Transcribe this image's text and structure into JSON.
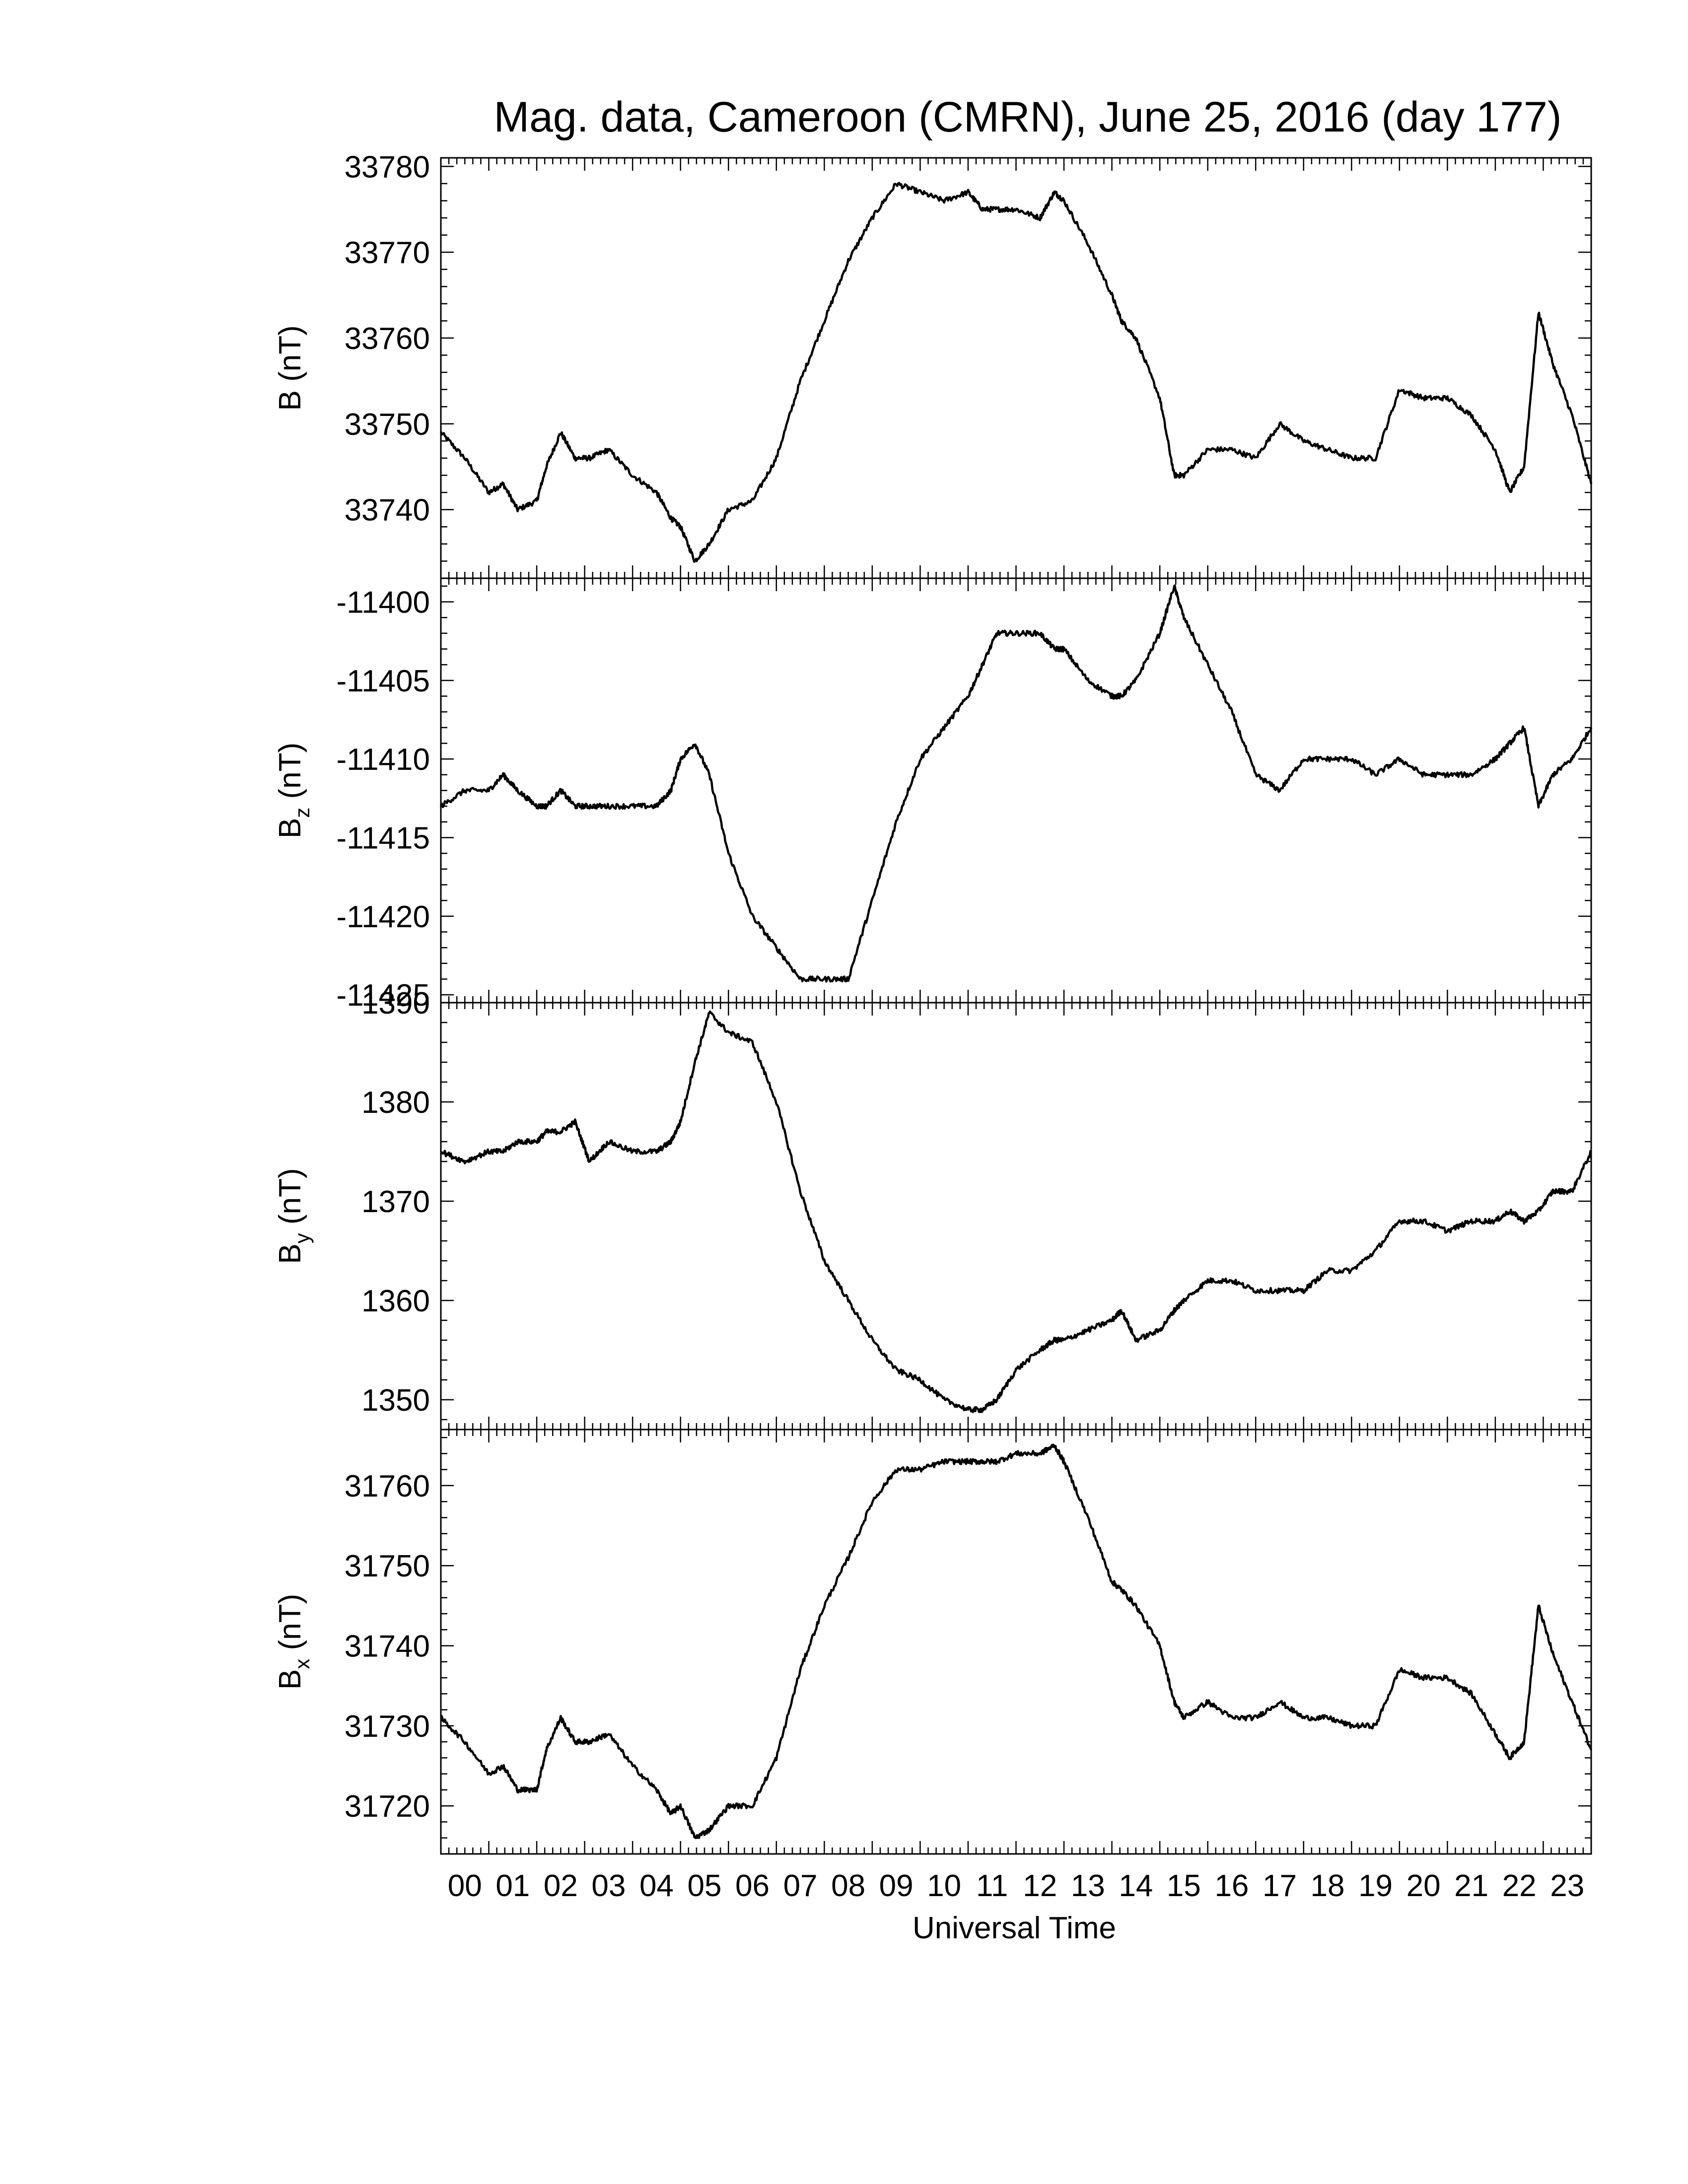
{
  "chart_data": {
    "type": "line",
    "title": "Mag. data, Cameroon (CMRN), June 25, 2016 (day 177)",
    "xlabel": "Universal Time",
    "x_tick_labels": [
      "00",
      "01",
      "02",
      "03",
      "04",
      "05",
      "06",
      "07",
      "08",
      "09",
      "10",
      "11",
      "12",
      "13",
      "14",
      "15",
      "16",
      "17",
      "18",
      "19",
      "20",
      "21",
      "22",
      "23"
    ],
    "xlim": [
      0,
      24
    ],
    "x": [
      0,
      0.5,
      1,
      1.3,
      1.6,
      2,
      2.2,
      2.5,
      2.8,
      3.1,
      3.5,
      4,
      4.5,
      4.8,
      5,
      5.3,
      5.6,
      6,
      6.5,
      7,
      7.5,
      8,
      8.5,
      9,
      9.5,
      10,
      10.5,
      11,
      11.3,
      11.6,
      12,
      12.5,
      12.8,
      13,
      13.5,
      14,
      14.2,
      14.5,
      15,
      15.3,
      15.5,
      16,
      16.5,
      17,
      17.5,
      18,
      18.5,
      19,
      19.5,
      20,
      20.5,
      21,
      21.5,
      22,
      22.3,
      22.6,
      22.9,
      23.2,
      23.6,
      24
    ],
    "panels": [
      {
        "ylabel": "B (nT)",
        "ylim": [
          33732,
          33781
        ],
        "yticks": [
          33740,
          33750,
          33760,
          33770,
          33780
        ],
        "values": [
          33749,
          33746,
          33742,
          33743,
          33740,
          33741,
          33745,
          33749,
          33746,
          33746,
          33747,
          33744,
          33742,
          33739,
          33738,
          33734,
          33736,
          33740,
          33741,
          33746,
          33755,
          33762,
          33769,
          33774,
          33778,
          33777,
          33776,
          33777,
          33775,
          33775,
          33775,
          33774,
          33777,
          33776,
          33771,
          33765,
          33762,
          33760,
          33753,
          33744,
          33744,
          33747,
          33747,
          33746,
          33750,
          33748,
          33747,
          33746,
          33746,
          33754,
          33753,
          33753,
          33751,
          33747,
          33742,
          33745,
          33763,
          33757,
          33751,
          33743
        ]
      },
      {
        "ylabel": "B_z (nT)",
        "ylim": [
          -11425.5,
          -11398.5
        ],
        "yticks": [
          -11400,
          -11405,
          -11410,
          -11415,
          -11420,
          -11425
        ],
        "values": [
          -11413,
          -11412,
          -11412,
          -11411,
          -11412,
          -11413,
          -11413,
          -11412,
          -11413,
          -11413,
          -11413,
          -11413,
          -11413,
          -11412,
          -11410,
          -11409,
          -11411,
          -11416,
          -11420,
          -11422,
          -11424,
          -11424,
          -11424,
          -11419,
          -11414,
          -11410,
          -11408,
          -11406,
          -11404,
          -11402,
          -11402,
          -11402,
          -11403,
          -11403,
          -11405,
          -11406,
          -11406,
          -11405,
          -11402,
          -11399,
          -11401,
          -11404,
          -11407,
          -11411,
          -11412,
          -11410,
          -11410,
          -11410,
          -11411,
          -11410,
          -11411,
          -11411,
          -11411,
          -11410,
          -11409,
          -11408,
          -11413,
          -11411,
          -11410,
          -11408
        ]
      },
      {
        "ylabel": "B_y (nT)",
        "ylim": [
          1347,
          1390
        ],
        "yticks": [
          1350,
          1360,
          1370,
          1380,
          1390
        ],
        "values": [
          1375,
          1374,
          1375,
          1375,
          1376,
          1376,
          1377,
          1377,
          1378,
          1374,
          1376,
          1375,
          1375,
          1376,
          1378,
          1384,
          1389,
          1387,
          1386,
          1380,
          1371,
          1364,
          1360,
          1356,
          1353,
          1352,
          1350,
          1349,
          1349,
          1350,
          1353,
          1355,
          1356,
          1356,
          1357,
          1358,
          1359,
          1356,
          1357,
          1359,
          1360,
          1362,
          1362,
          1361,
          1361,
          1361,
          1363,
          1363,
          1365,
          1368,
          1368,
          1367,
          1368,
          1368,
          1369,
          1368,
          1369,
          1371,
          1371,
          1375
        ]
      },
      {
        "ylabel": "B_x (nT)",
        "ylim": [
          31714,
          31767
        ],
        "yticks": [
          31720,
          31730,
          31740,
          31750,
          31760
        ],
        "values": [
          31731,
          31728,
          31724,
          31725,
          31722,
          31722,
          31727,
          31731,
          31728,
          31728,
          31729,
          31725,
          31722,
          31719,
          31720,
          31716,
          31717,
          31720,
          31720,
          31726,
          31737,
          31745,
          31751,
          31758,
          31762,
          31762,
          31763,
          31763,
          31763,
          31763,
          31764,
          31764,
          31765,
          31763,
          31756,
          31748,
          31747,
          31745,
          31740,
          31733,
          31731,
          31733,
          31731,
          31731,
          31733,
          31731,
          31731,
          31730,
          31730,
          31737,
          31736,
          31736,
          31734,
          31729,
          31726,
          31728,
          31745,
          31739,
          31733,
          31727
        ]
      }
    ]
  }
}
